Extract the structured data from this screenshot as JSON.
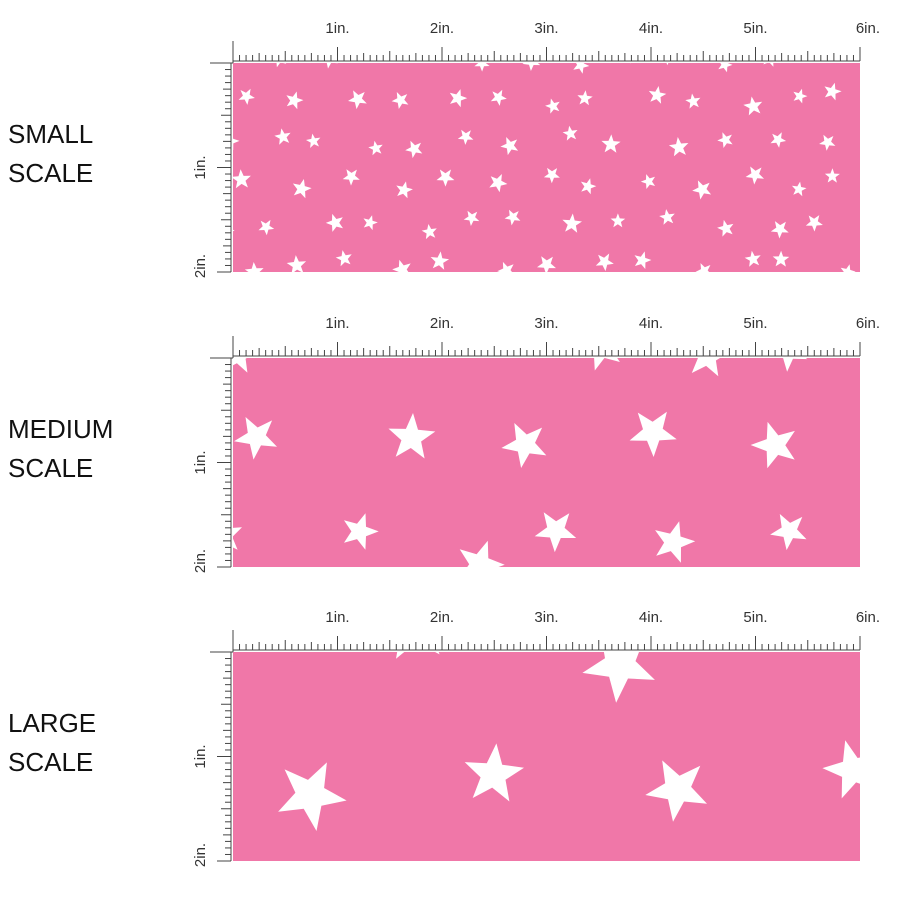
{
  "panels": [
    {
      "name_lines": [
        "SMALL",
        "SCALE"
      ],
      "x_ruler": [
        "1in.",
        "2in.",
        "3in.",
        "4in.",
        "5in.",
        "6in."
      ],
      "y_ruler": [
        "1in.",
        "2in."
      ]
    },
    {
      "name_lines": [
        "MEDIUM",
        "SCALE"
      ],
      "x_ruler": [
        "1in.",
        "2in.",
        "3in.",
        "4in.",
        "5in.",
        "6in."
      ],
      "y_ruler": [
        "1in.",
        "2in."
      ]
    },
    {
      "name_lines": [
        "LARGE",
        "SCALE"
      ],
      "x_ruler": [
        "1in.",
        "2in.",
        "3in.",
        "4in.",
        "5in.",
        "6in."
      ],
      "y_ruler": [
        "1in.",
        "2in."
      ]
    }
  ]
}
